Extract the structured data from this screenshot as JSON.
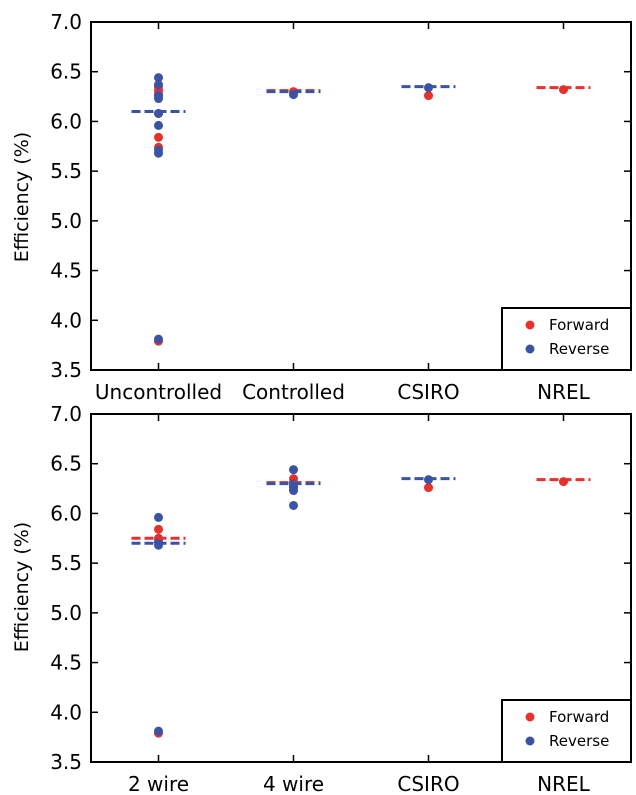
{
  "chart_data": [
    {
      "type": "scatter",
      "ylabel": "Efficiency (%)",
      "ylim": [
        3.5,
        7.0
      ],
      "yticks": [
        "3.5",
        "4.0",
        "4.5",
        "5.0",
        "5.5",
        "6.0",
        "6.5",
        "7.0"
      ],
      "categories": [
        "Uncontrolled",
        "Controlled",
        "CSIRO",
        "NREL"
      ],
      "legend": {
        "placement": "bottom-right",
        "entries": [
          "Forward",
          "Reverse"
        ]
      },
      "series": [
        {
          "name": "Forward",
          "color": "#e8312b",
          "points": [
            {
              "x": "Uncontrolled",
              "y": 6.35
            },
            {
              "x": "Uncontrolled",
              "y": 6.31
            },
            {
              "x": "Uncontrolled",
              "y": 6.27
            },
            {
              "x": "Uncontrolled",
              "y": 6.08
            },
            {
              "x": "Uncontrolled",
              "y": 5.84
            },
            {
              "x": "Uncontrolled",
              "y": 5.74
            },
            {
              "x": "Uncontrolled",
              "y": 3.79
            },
            {
              "x": "Controlled",
              "y": 6.3
            },
            {
              "x": "CSIRO",
              "y": 6.26
            },
            {
              "x": "NREL",
              "y": 6.32
            }
          ],
          "means": [
            {
              "x": "Controlled",
              "y": 6.31
            },
            {
              "x": "NREL",
              "y": 6.34
            }
          ]
        },
        {
          "name": "Reverse",
          "color": "#3a53a4",
          "points": [
            {
              "x": "Uncontrolled",
              "y": 6.44
            },
            {
              "x": "Uncontrolled",
              "y": 6.37
            },
            {
              "x": "Uncontrolled",
              "y": 6.26
            },
            {
              "x": "Uncontrolled",
              "y": 6.23
            },
            {
              "x": "Uncontrolled",
              "y": 6.08
            },
            {
              "x": "Uncontrolled",
              "y": 5.96
            },
            {
              "x": "Uncontrolled",
              "y": 5.71
            },
            {
              "x": "Uncontrolled",
              "y": 5.68
            },
            {
              "x": "Uncontrolled",
              "y": 3.81
            },
            {
              "x": "Controlled",
              "y": 6.27
            },
            {
              "x": "CSIRO",
              "y": 6.34
            }
          ],
          "means": [
            {
              "x": "Uncontrolled",
              "y": 6.1
            },
            {
              "x": "Controlled",
              "y": 6.3
            },
            {
              "x": "CSIRO",
              "y": 6.35
            }
          ]
        }
      ]
    },
    {
      "type": "scatter",
      "ylabel": "Efficiency (%)",
      "ylim": [
        3.5,
        7.0
      ],
      "yticks": [
        "3.5",
        "4.0",
        "4.5",
        "5.0",
        "5.5",
        "6.0",
        "6.5",
        "7.0"
      ],
      "categories": [
        "2 wire",
        "4 wire",
        "CSIRO",
        "NREL"
      ],
      "legend": {
        "placement": "bottom-right",
        "entries": [
          "Forward",
          "Reverse"
        ]
      },
      "series": [
        {
          "name": "Forward",
          "color": "#e8312b",
          "points": [
            {
              "x": "2 wire",
              "y": 5.84
            },
            {
              "x": "2 wire",
              "y": 5.75
            },
            {
              "x": "2 wire",
              "y": 5.72
            },
            {
              "x": "2 wire",
              "y": 3.79
            },
            {
              "x": "4 wire",
              "y": 6.35
            },
            {
              "x": "4 wire",
              "y": 6.31
            },
            {
              "x": "4 wire",
              "y": 6.27
            },
            {
              "x": "CSIRO",
              "y": 6.26
            },
            {
              "x": "NREL",
              "y": 6.32
            }
          ],
          "means": [
            {
              "x": "2 wire",
              "y": 5.75
            },
            {
              "x": "4 wire",
              "y": 6.31
            },
            {
              "x": "NREL",
              "y": 6.34
            }
          ]
        },
        {
          "name": "Reverse",
          "color": "#3a53a4",
          "points": [
            {
              "x": "2 wire",
              "y": 5.96
            },
            {
              "x": "2 wire",
              "y": 5.71
            },
            {
              "x": "2 wire",
              "y": 5.68
            },
            {
              "x": "2 wire",
              "y": 3.81
            },
            {
              "x": "4 wire",
              "y": 6.44
            },
            {
              "x": "4 wire",
              "y": 6.3
            },
            {
              "x": "4 wire",
              "y": 6.26
            },
            {
              "x": "4 wire",
              "y": 6.23
            },
            {
              "x": "4 wire",
              "y": 6.08
            },
            {
              "x": "CSIRO",
              "y": 6.34
            }
          ],
          "means": [
            {
              "x": "2 wire",
              "y": 5.7
            },
            {
              "x": "4 wire",
              "y": 6.3
            },
            {
              "x": "CSIRO",
              "y": 6.35
            }
          ]
        }
      ]
    }
  ]
}
